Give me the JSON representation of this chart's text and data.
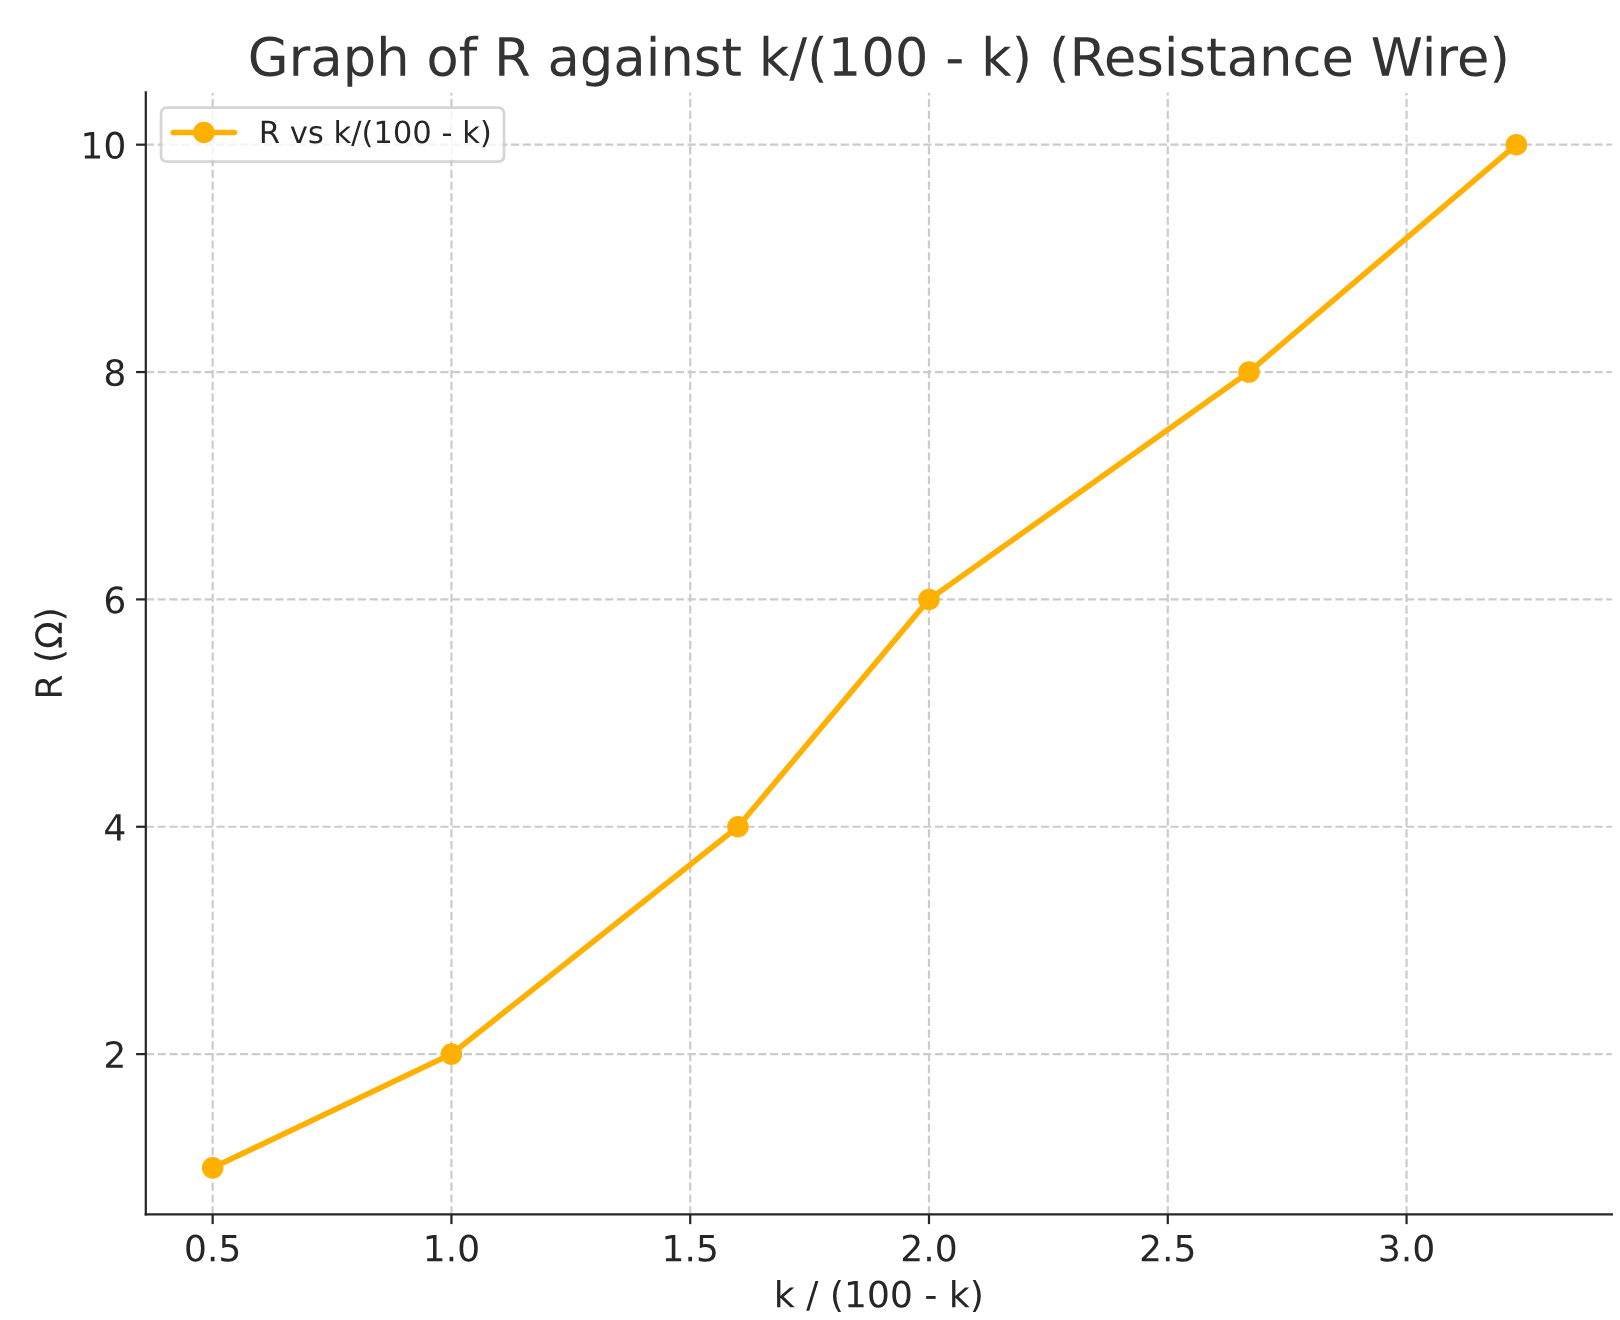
{
  "chart_data": {
    "type": "line",
    "title": "Graph of R against k/(100 - k) (Resistance Wire)",
    "xlabel": "k / (100 - k)",
    "ylabel": "R (Ω)",
    "x": [
      0.5,
      1.0,
      1.6,
      2.0,
      2.67,
      3.23
    ],
    "series": [
      {
        "name": "R vs k/(100 - k)",
        "color": "#ffb000",
        "values": [
          1,
          2,
          4,
          6,
          8,
          10
        ]
      }
    ],
    "xlim": [
      0.36,
      3.43
    ],
    "ylim": [
      0.59,
      10.46
    ],
    "xticks": [
      {
        "value": 0.5,
        "label": "0.5"
      },
      {
        "value": 1.0,
        "label": "1.0"
      },
      {
        "value": 1.5,
        "label": "1.5"
      },
      {
        "value": 2.0,
        "label": "2.0"
      },
      {
        "value": 2.5,
        "label": "2.5"
      },
      {
        "value": 3.0,
        "label": "3.0"
      }
    ],
    "yticks": [
      2,
      4,
      6,
      8,
      10
    ],
    "grid": true,
    "legend": "top left",
    "marker": "circle",
    "line_style": "solid"
  }
}
